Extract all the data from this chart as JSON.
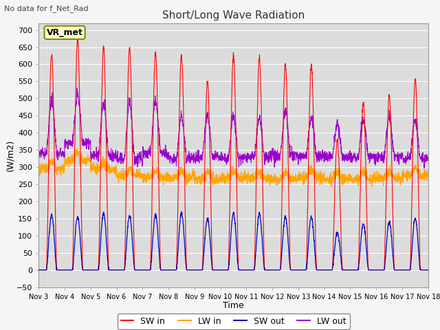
{
  "title": "Short/Long Wave Radiation",
  "xlabel": "Time",
  "ylabel": "(W/m2)",
  "top_left_text": "No data for f_Net_Rad",
  "legend_label_text": "VR_met",
  "ylim": [
    -50,
    720
  ],
  "yticks": [
    -50,
    0,
    50,
    100,
    150,
    200,
    250,
    300,
    350,
    400,
    450,
    500,
    550,
    600,
    650,
    700
  ],
  "colors": {
    "SW_in": "#ff0000",
    "LW_in": "#ffa500",
    "SW_out": "#0000bb",
    "LW_out": "#9900cc"
  },
  "background_color": "#dcdcdc",
  "fig_background": "#f5f5f5",
  "grid_color": "#ffffff",
  "num_days": 15,
  "start_day": 3,
  "SW_in_peaks": [
    630,
    670,
    650,
    650,
    635,
    625,
    550,
    625,
    620,
    600,
    600,
    380,
    490,
    510,
    555
  ],
  "SW_out_peaks": [
    160,
    155,
    165,
    160,
    160,
    165,
    150,
    165,
    165,
    155,
    155,
    110,
    135,
    140,
    150
  ],
  "LW_in_base": [
    295,
    320,
    295,
    275,
    270,
    270,
    265,
    270,
    268,
    265,
    270,
    265,
    265,
    268,
    275
  ],
  "LW_out_base": [
    340,
    370,
    335,
    325,
    340,
    325,
    330,
    325,
    330,
    335,
    330,
    330,
    330,
    330,
    325
  ],
  "LW_out_peaks": [
    500,
    510,
    485,
    490,
    495,
    450,
    450,
    450,
    440,
    460,
    445,
    425,
    440,
    445,
    440
  ]
}
